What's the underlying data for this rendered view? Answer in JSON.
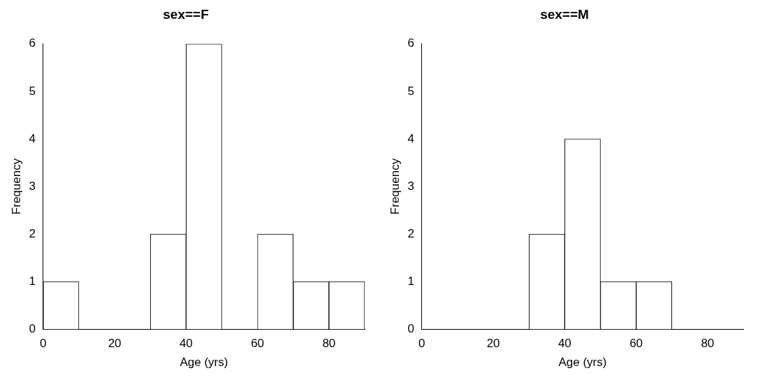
{
  "chart_data": [
    {
      "type": "histogram",
      "title": "sex==F",
      "xlabel": "Age (yrs)",
      "ylabel": "Frequency",
      "bins": [
        0,
        10,
        20,
        30,
        40,
        50,
        60,
        70,
        80,
        90
      ],
      "values": [
        1,
        0,
        0,
        2,
        6,
        0,
        2,
        1,
        1
      ],
      "color": "#ffffff",
      "xlim": [
        0,
        90
      ],
      "xticks": [
        0,
        20,
        40,
        60,
        80
      ],
      "ylim": [
        0,
        6
      ],
      "yticks": [
        0,
        1,
        2,
        3,
        4,
        5,
        6
      ],
      "grid": false,
      "legend": false
    },
    {
      "type": "histogram",
      "title": "sex==M",
      "xlabel": "Age (yrs)",
      "ylabel": "Frequency",
      "bins": [
        0,
        10,
        20,
        30,
        40,
        50,
        60,
        70,
        80,
        90
      ],
      "values": [
        0,
        0,
        0,
        2,
        4,
        1,
        1,
        0,
        0
      ],
      "color": "#ffffff",
      "xlim": [
        0,
        90
      ],
      "xticks": [
        0,
        20,
        40,
        60,
        80
      ],
      "ylim": [
        0,
        6
      ],
      "yticks": [
        0,
        1,
        2,
        3,
        4,
        5,
        6
      ],
      "grid": false,
      "legend": false
    }
  ]
}
